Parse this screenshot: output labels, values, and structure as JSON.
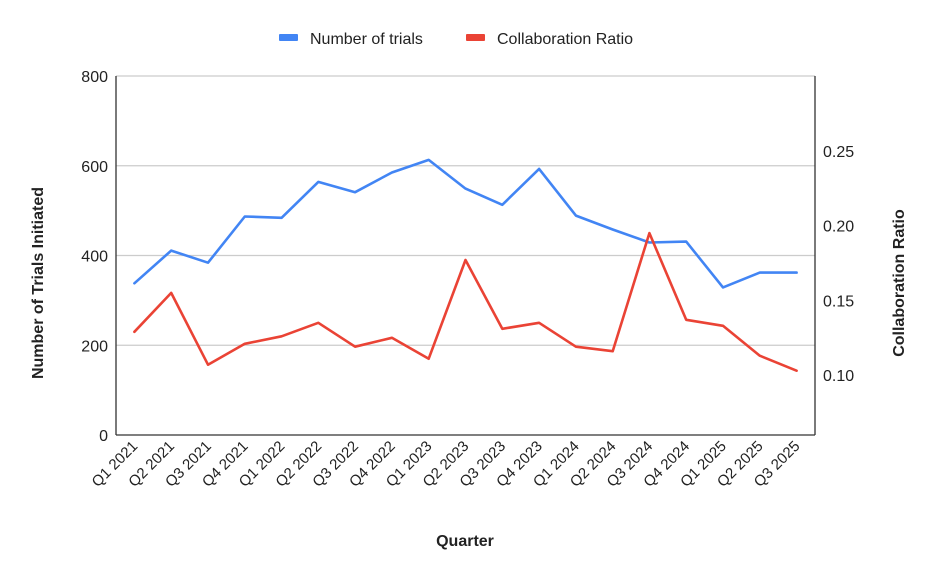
{
  "legend": {
    "items": [
      {
        "label": "Number of trials",
        "color": "#4285f4"
      },
      {
        "label": "Collaboration Ratio",
        "color": "#ea4335"
      }
    ]
  },
  "axes": {
    "x_title": "Quarter",
    "y_left_title": "Number of Trials Initiated",
    "y_right_title": "Collaboration Ratio",
    "y_left_ticks": [
      "0",
      "200",
      "400",
      "600",
      "800"
    ],
    "y_right_ticks": [
      "0.10",
      "0.15",
      "0.20",
      "0.25"
    ]
  },
  "chart_data": {
    "type": "line",
    "title": "",
    "xlabel": "Quarter",
    "ylabel": "Number of Trials Initiated",
    "y2label": "Collaboration Ratio",
    "categories": [
      "Q1 2021",
      "Q2 2021",
      "Q3 2021",
      "Q4 2021",
      "Q1 2022",
      "Q2 2022",
      "Q3 2022",
      "Q4 2022",
      "Q1 2023",
      "Q2 2023",
      "Q3 2023",
      "Q4 2023",
      "Q1 2024",
      "Q2 2024",
      "Q3 2024",
      "Q4 2024",
      "Q1 2025",
      "Q2 2025",
      "Q3 2025"
    ],
    "series": [
      {
        "name": "Number of trials",
        "axis": "left",
        "color": "#4285f4",
        "values": [
          338,
          411,
          384,
          487,
          484,
          564,
          541,
          585,
          613,
          549,
          513,
          593,
          489,
          458,
          429,
          431,
          329,
          362,
          362
        ]
      },
      {
        "name": "Collaboration Ratio",
        "axis": "right",
        "color": "#ea4335",
        "values": [
          0.129,
          0.155,
          0.107,
          0.121,
          0.126,
          0.135,
          0.119,
          0.125,
          0.111,
          0.177,
          0.131,
          0.135,
          0.119,
          0.116,
          0.195,
          0.137,
          0.133,
          0.113,
          0.103
        ]
      }
    ],
    "ylim": [
      0,
      800
    ],
    "y2lim": [
      0.06,
      0.3
    ],
    "y_ticks": [
      0,
      200,
      400,
      600,
      800
    ],
    "y2_ticks": [
      0.1,
      0.15,
      0.2,
      0.25
    ],
    "grid": true,
    "legend_position": "top"
  }
}
